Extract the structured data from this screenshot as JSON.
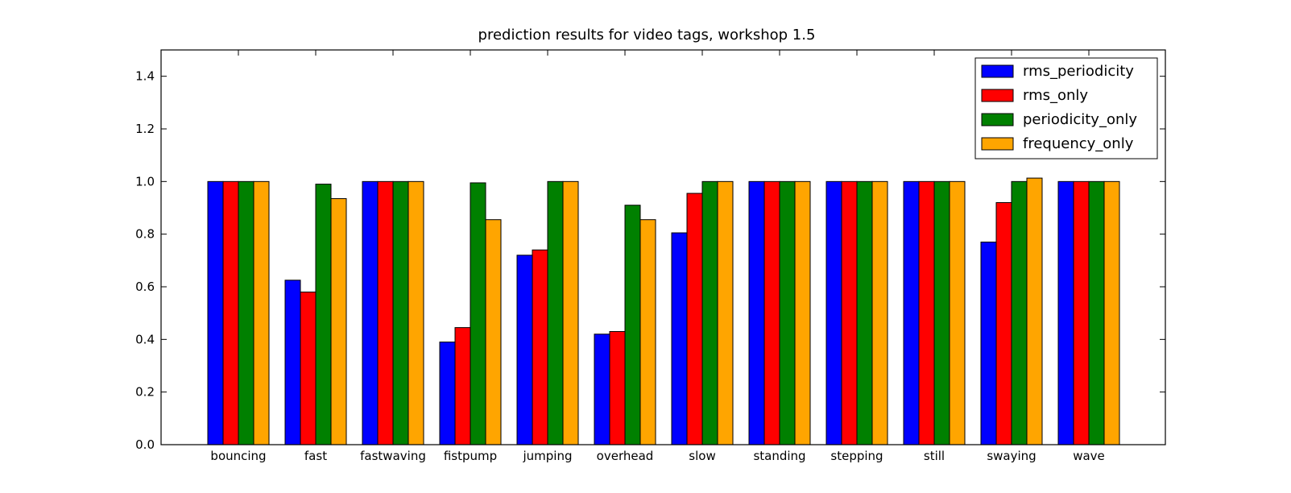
{
  "chart_data": {
    "type": "bar",
    "title": "prediction results for video tags, workshop 1.5",
    "xlabel": "",
    "ylabel": "",
    "ylim": [
      0,
      1.5
    ],
    "yticks": [
      "0.0",
      "0.2",
      "0.4",
      "0.6",
      "0.8",
      "1.0",
      "1.2",
      "1.4"
    ],
    "ytick_values": [
      0,
      0.2,
      0.4,
      0.6,
      0.8,
      1.0,
      1.2,
      1.4
    ],
    "grid": false,
    "legend_position": "top-right",
    "categories": [
      "bouncing",
      "fast",
      "fastwaving",
      "fistpump",
      "jumping",
      "overhead",
      "slow",
      "standing",
      "stepping",
      "still",
      "swaying",
      "wave"
    ],
    "series": [
      {
        "name": "rms_periodicity",
        "color": "#0000ff",
        "values": [
          1.0,
          0.625,
          1.0,
          0.39,
          0.72,
          0.42,
          0.805,
          1.0,
          1.0,
          1.0,
          0.77,
          1.0
        ]
      },
      {
        "name": "rms_only",
        "color": "#ff0000",
        "values": [
          1.0,
          0.58,
          1.0,
          0.445,
          0.74,
          0.43,
          0.955,
          1.0,
          1.0,
          1.0,
          0.92,
          1.0
        ]
      },
      {
        "name": "periodicity_only",
        "color": "#008000",
        "values": [
          1.0,
          0.99,
          1.0,
          0.995,
          1.0,
          0.91,
          1.0,
          1.0,
          1.0,
          1.0,
          1.0,
          1.0
        ]
      },
      {
        "name": "frequency_only",
        "color": "#ffa500",
        "values": [
          1.0,
          0.935,
          1.0,
          0.855,
          1.0,
          0.855,
          1.0,
          1.0,
          1.0,
          1.0,
          1.013,
          1.0
        ]
      }
    ]
  }
}
